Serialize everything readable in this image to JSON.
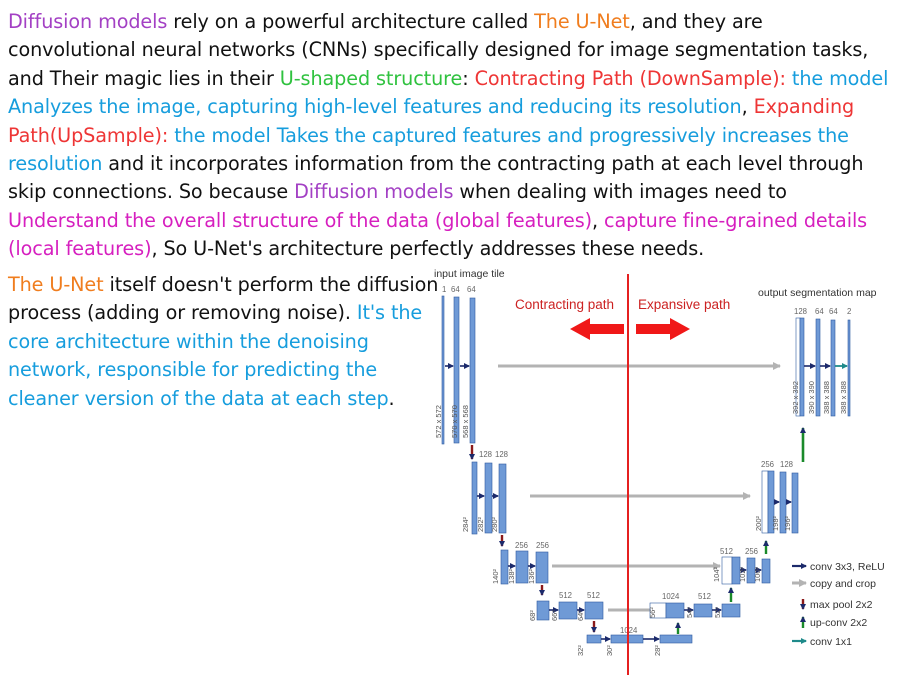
{
  "paragraph1": {
    "s1": "Diffusion models",
    "s2": " rely on a powerful architecture called ",
    "s3": "The U-Net",
    "s4": ", and they are convolutional neural networks (CNNs) specifically designed for image segmentation tasks, and Their magic lies in their ",
    "s5": "U-shaped structure",
    "s6": ": ",
    "s7": "Contracting Path (DownSample):",
    "s8": " the model Analyzes the image, capturing high-level features and reducing its resolution",
    "s9": ", ",
    "s10": "Expanding Path(UpSample):",
    "s11": " the model Takes the captured features and progressively increases the resolution",
    "s12": " and it incorporates information from the contracting path at each level through skip connections. So because ",
    "s13": "Diffusion models",
    "s14": " when dealing with images need to ",
    "s15": "Understand the overall structure of the data (global features)",
    "s16": ", ",
    "s17": "capture fine-grained details (local features)",
    "s18": ", So U-Net's architecture perfectly addresses these needs."
  },
  "paragraph2": {
    "s1": "The U-Net",
    "s2": " itself doesn't perform the diffusion process (adding or removing noise). ",
    "s3": "It's the core architecture within the denoising network, responsible for predicting the cleaner version of the data at each step",
    "s4": "."
  },
  "diagram": {
    "input_label": "input image tile",
    "output_label": "output segmentation map",
    "contracting_label": "Contracting path",
    "expansive_label": "Expansive path",
    "channels": {
      "in1": "1",
      "in2": "64",
      "in3": "64",
      "l2a": "128",
      "l2b": "128",
      "l3a": "256",
      "l3b": "256",
      "l4a": "512",
      "l4b": "512",
      "bott": "1024",
      "u4a": "1024",
      "u4b": "512",
      "u3a": "512",
      "u3b": "256",
      "u2a": "256",
      "u2b": "128",
      "o1": "128",
      "o2": "64",
      "o3": "64",
      "o4": "2"
    },
    "sizes": {
      "d1a": "572 x 572",
      "d1b": "570 x 570",
      "d1c": "568 x 568",
      "d2a": "284²",
      "d2b": "282²",
      "d2c": "280²",
      "d3a": "140²",
      "d3b": "138²",
      "d3c": "136²",
      "d4a": "68²",
      "d4b": "66²",
      "d4c": "64²",
      "b1": "32²",
      "b2": "30²",
      "b3": "28²",
      "u4a": "56²",
      "u4b": "54²",
      "u4c": "52²",
      "u3a": "104²",
      "u3b": "102²",
      "u3c": "100²",
      "u2a": "200²",
      "u2b": "198²",
      "u2c": "196²",
      "o1": "392 x 392",
      "o2": "390 x 390",
      "o3": "388 x 388",
      "o4": "388 x 388"
    },
    "legend": {
      "conv": "conv 3x3, ReLU",
      "copy": "copy and crop",
      "pool": "max pool 2x2",
      "upconv": "up-conv 2x2",
      "conv1": "conv 1x1"
    }
  },
  "colors": {
    "purple": "#a340c4",
    "orange": "#f07d1e",
    "green": "#2fc23f",
    "red": "#ee3535",
    "blue": "#169ddd",
    "pink": "#d61fbf",
    "block_fill": "#6f9ad6",
    "block_edge": "#2f5a9e"
  }
}
